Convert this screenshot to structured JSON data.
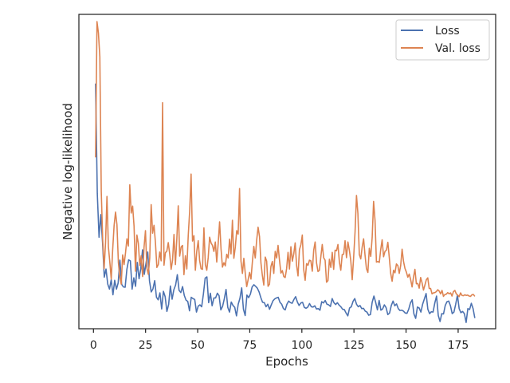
{
  "chart_data": {
    "type": "line",
    "xlabel": "Epochs",
    "ylabel": "Negative log-likelihood",
    "xlim": [
      -7,
      193
    ],
    "ylim": [
      0,
      100
    ],
    "x_ticks": [
      0,
      25,
      50,
      75,
      100,
      125,
      150,
      175
    ],
    "y_ticks_visible": false,
    "grid": false,
    "legend_position": "top-right",
    "series": [
      {
        "name": "Loss",
        "color": "#4c72b0",
        "values": [
          78.0,
          43.0,
          29.1,
          36.3,
          27.6,
          16.4,
          19.0,
          14.2,
          12.6,
          15.6,
          10.8,
          15.4,
          12.6,
          14.6,
          21.8,
          14.1,
          13.3,
          13.2,
          18.9,
          21.9,
          21.6,
          12.6,
          16.2,
          13.5,
          21.1,
          15.9,
          19.1,
          25.1,
          17.3,
          20.8,
          24.4,
          15.2,
          11.7,
          12.7,
          15.3,
          10.0,
          9.2,
          11.4,
          6.3,
          11.9,
          10.2,
          5.5,
          7.7,
          13.6,
          9.4,
          12.4,
          13.9,
          17.2,
          12.2,
          11.5,
          13.4,
          10.6,
          9.1,
          8.7,
          5.7,
          10.0,
          9.6,
          9.3,
          5.3,
          7.2,
          7.6,
          7.0,
          11.1,
          16.1,
          16.5,
          8.3,
          11.3,
          7.3,
          9.8,
          9.8,
          11.3,
          10.5,
          6.0,
          7.1,
          9.5,
          12.5,
          6.8,
          5.3,
          8.5,
          7.4,
          6.8,
          4.1,
          7.8,
          9.7,
          13.0,
          6.2,
          4.2,
          10.7,
          9.9,
          11.0,
          13.3,
          14.0,
          13.5,
          12.9,
          11.7,
          9.9,
          8.4,
          8.3,
          7.0,
          7.8,
          6.2,
          7.6,
          8.9,
          9.5,
          9.8,
          10.0,
          8.4,
          7.8,
          6.4,
          6.0,
          7.8,
          8.8,
          8.3,
          8.1,
          9.3,
          10.2,
          8.5,
          7.4,
          8.2,
          8.4,
          6.8,
          6.5,
          6.9,
          8.0,
          7.0,
          6.9,
          7.3,
          6.3,
          6.4,
          5.9,
          8.6,
          8.2,
          9.0,
          7.8,
          7.6,
          7.1,
          9.6,
          8.3,
          7.7,
          8.3,
          7.5,
          7.0,
          6.2,
          6.1,
          5.0,
          4.1,
          6.6,
          7.0,
          8.7,
          9.6,
          7.8,
          7.0,
          7.4,
          6.4,
          6.5,
          5.6,
          5.3,
          4.3,
          4.5,
          8.4,
          10.4,
          8.4,
          6.0,
          9.0,
          5.9,
          6.3,
          7.6,
          6.7,
          4.5,
          5.0,
          7.4,
          8.8,
          7.3,
          7.9,
          6.4,
          5.8,
          5.9,
          5.6,
          5.0,
          4.9,
          6.2,
          8.2,
          9.2,
          4.7,
          3.3,
          6.9,
          6.6,
          5.3,
          7.8,
          9.5,
          11.2,
          6.2,
          4.8,
          5.4,
          5.3,
          8.2,
          10.4,
          4.2,
          2.3,
          4.8,
          4.7,
          7.4,
          8.6,
          8.8,
          7.3,
          4.8,
          5.3,
          7.8,
          10.7,
          6.4,
          5.1,
          5.5,
          4.8,
          2.0,
          6.4,
          6.1,
          8.1,
          6.4,
          3.4
        ]
      },
      {
        "name": "Val. loss",
        "color": "#dd8452",
        "values": [
          54.5,
          97.7,
          94.1,
          86.5,
          43.6,
          28.3,
          19.1,
          27.4,
          42.1,
          26.1,
          21.2,
          15.8,
          25.1,
          32.8,
          37.1,
          33.1,
          21.1,
          16.5,
          14.2,
          23.5,
          20.4,
          24.1,
          28.6,
          26.3,
          45.8,
          36.8,
          39.0,
          32.6,
          18.3,
          29.8,
          27.2,
          20.1,
          23.2,
          16.6,
          25.9,
          31.2,
          19.2,
          17.3,
          22.5,
          39.5,
          30.4,
          32.9,
          27.4,
          19.5,
          20.4,
          24.4,
          21.6,
          71.9,
          20.2,
          24.2,
          24.7,
          27.4,
          23.8,
          18.9,
          21.8,
          30.0,
          20.4,
          28.5,
          39.1,
          23.1,
          26.0,
          26.5,
          17.2,
          23.2,
          19.0,
          29.6,
          37.4,
          49.2,
          27.9,
          29.6,
          18.6,
          24.7,
          28.0,
          21.7,
          19.1,
          18.9,
          32.1,
          20.4,
          18.6,
          22.6,
          29.1,
          27.3,
          26.5,
          24.6,
          27.6,
          21.2,
          27.1,
          34.0,
          25.4,
          19.6,
          21.0,
          20.0,
          23.7,
          22.5,
          28.5,
          23.8,
          34.5,
          22.4,
          25.9,
          31.2,
          30.1,
          44.6,
          21.5,
          17.6,
          22.4,
          17.6,
          13.4,
          15.6,
          17.9,
          15.8,
          21.3,
          26.2,
          22.5,
          28.2,
          32.3,
          29.3,
          20.9,
          16.9,
          13.9,
          22.8,
          21.5,
          13.5,
          14.2,
          19.8,
          21.4,
          17.6,
          24.6,
          22.5,
          26.5,
          21.8,
          17.7,
          18.5,
          16.6,
          16.3,
          19.1,
          24.3,
          19.0,
          26.1,
          21.5,
          23.8,
          27.3,
          20.1,
          16.8,
          25.2,
          26.7,
          29.8,
          18.8,
          15.4,
          20.7,
          20.2,
          21.8,
          21.6,
          18.3,
          25.0,
          27.6,
          20.9,
          18.2,
          18.6,
          22.9,
          26.8,
          22.6,
          21.8,
          14.8,
          15.3,
          22.1,
          19.5,
          24.3,
          18.9,
          25.0,
          24.8,
          26.8,
          21.3,
          18.6,
          23.6,
          23.7,
          28.0,
          22.6,
          27.6,
          25.0,
          21.7,
          15.6,
          22.6,
          30.8,
          42.4,
          36.7,
          23.6,
          22.2,
          26.0,
          28.6,
          23.4,
          19.1,
          17.9,
          25.6,
          23.0,
          29.0,
          40.5,
          34.5,
          21.2,
          21.4,
          21.1,
          25.2,
          28.3,
          22.9,
          24.6,
          25.0,
          27.5,
          22.7,
          17.6,
          15.1,
          18.6,
          17.8,
          20.6,
          20.1,
          17.6,
          20.1,
          25.3,
          21.4,
          19.2,
          18.0,
          16.4,
          17.4,
          15.6,
          13.3,
          16.4,
          18.9,
          14.3,
          14.4,
          12.9,
          16.3,
          14.6,
          12.3,
          13.9,
          15.6,
          16.2,
          12.8,
          12.8,
          11.1,
          11.4,
          11.5,
          11.8,
          12.4,
          12.0,
          11.1,
          12.2,
          10.3,
          10.9,
          11.0,
          11.5,
          11.1,
          11.4,
          10.4,
          11.8,
          12.2,
          11.1,
          10.7,
          10.2,
          11.4,
          10.6,
          10.5,
          10.8,
          10.6,
          10.7,
          10.4,
          10.3,
          10.8,
          10.9,
          10.3
        ]
      }
    ]
  }
}
